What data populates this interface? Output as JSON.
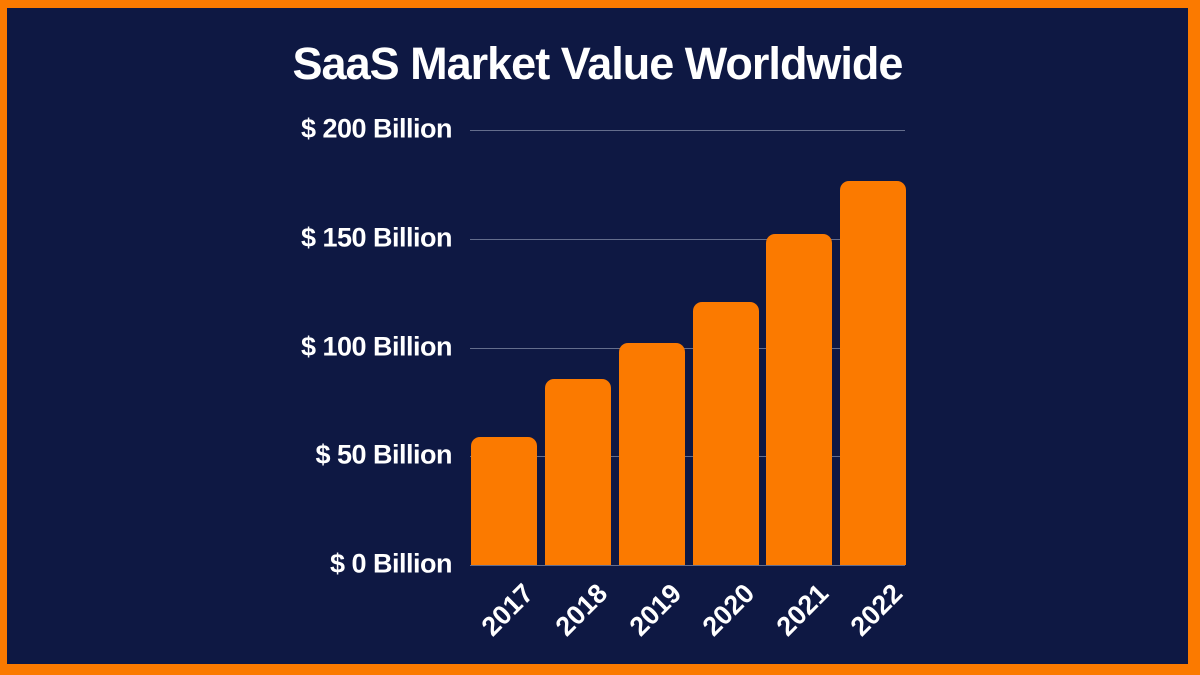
{
  "title": "SaaS Market Value Worldwide",
  "colors": {
    "background": "#0E1843",
    "frame_border": "#FB7A00",
    "bar": "#FB7A00",
    "gridline": "rgba(186,193,214,0.5)",
    "text": "#FFFFFF"
  },
  "chart_data": {
    "type": "bar",
    "title": "SaaS Market Value Worldwide",
    "categories": [
      "2017",
      "2018",
      "2019",
      "2020",
      "2021",
      "2022"
    ],
    "values": [
      58.8,
      85.7,
      102.1,
      120.7,
      152.2,
      176.6
    ],
    "unit": "USD Billion",
    "xlabel": "",
    "ylabel": "",
    "ylim": [
      0,
      200
    ],
    "yticks": [
      {
        "value": 200,
        "label": "$ 200 Billion"
      },
      {
        "value": 150,
        "label": "$ 150 Billion"
      },
      {
        "value": 100,
        "label": "$ 100 Billion"
      },
      {
        "value": 50,
        "label": "$ 50 Billion"
      },
      {
        "value": 0,
        "label": "$ 0 Billion"
      }
    ],
    "grid": true,
    "legend": false,
    "x_tick_rotation": -45
  }
}
